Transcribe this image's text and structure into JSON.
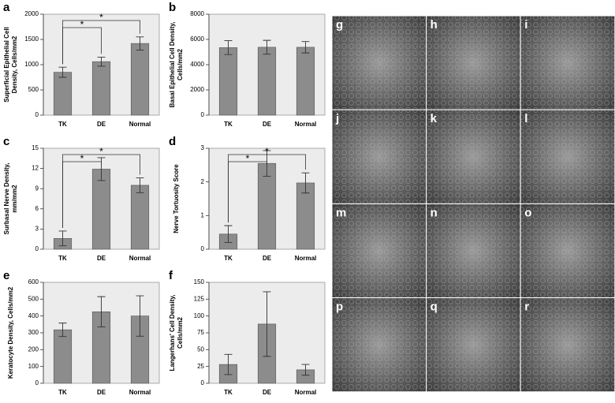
{
  "chart_data": [
    {
      "type": "bar",
      "label": "a",
      "ylabel": [
        "Superficial Epithelial Cell",
        "Density, Cells/mm2"
      ],
      "categories": [
        "TK",
        "DE",
        "Normal"
      ],
      "values": [
        850,
        1060,
        1420
      ],
      "errors": [
        100,
        90,
        130
      ],
      "ylim": [
        0,
        2000
      ],
      "yticks": [
        0,
        500,
        1000,
        1500,
        2000
      ],
      "color": "#8c8c8c",
      "brackets": [
        {
          "text": "*",
          "between": [
            "TK",
            "DE"
          ]
        },
        {
          "text": "*",
          "between": [
            "TK",
            "Normal"
          ]
        }
      ]
    },
    {
      "type": "bar",
      "label": "b",
      "ylabel": [
        "Basal Epithelial Cell Density,",
        "Cells/mm2"
      ],
      "categories": [
        "TK",
        "DE",
        "Normal"
      ],
      "values": [
        5350,
        5380,
        5380
      ],
      "errors": [
        550,
        550,
        450
      ],
      "ylim": [
        0,
        8000
      ],
      "yticks": [
        0,
        2000,
        4000,
        6000,
        8000
      ],
      "color": "#8c8c8c",
      "brackets": []
    },
    {
      "type": "bar",
      "label": "c",
      "ylabel": [
        "Surbasal Nerve Density,",
        "mm/mm2"
      ],
      "categories": [
        "TK",
        "DE",
        "Normal"
      ],
      "values": [
        1.6,
        11.9,
        9.5
      ],
      "errors": [
        1.1,
        1.7,
        1.1
      ],
      "ylim": [
        0,
        15
      ],
      "yticks": [
        0,
        3,
        6,
        9,
        12,
        15
      ],
      "color": "#8c8c8c",
      "brackets": [
        {
          "text": "*",
          "between": [
            "TK",
            "DE"
          ]
        },
        {
          "text": "*",
          "between": [
            "TK",
            "Normal"
          ]
        }
      ]
    },
    {
      "type": "bar",
      "label": "d",
      "ylabel": [
        "Nerve Tortuosity Score"
      ],
      "categories": [
        "TK",
        "DE",
        "Normal"
      ],
      "values": [
        0.45,
        2.55,
        1.97
      ],
      "errors": [
        0.25,
        0.38,
        0.3
      ],
      "ylim": [
        0,
        3
      ],
      "yticks": [
        0,
        1,
        2,
        3
      ],
      "color": "#8c8c8c",
      "brackets": [
        {
          "text": "*",
          "between": [
            "TK",
            "DE"
          ]
        },
        {
          "text": "*",
          "between": [
            "TK",
            "Normal"
          ]
        }
      ]
    },
    {
      "type": "bar",
      "label": "e",
      "ylabel": [
        "Keratocyte Density, Cells/mm2"
      ],
      "categories": [
        "TK",
        "DE",
        "Normal"
      ],
      "values": [
        318,
        425,
        400
      ],
      "errors": [
        40,
        90,
        120
      ],
      "ylim": [
        0,
        600
      ],
      "yticks": [
        0,
        100,
        200,
        300,
        400,
        500,
        600
      ],
      "color": "#8c8c8c",
      "brackets": []
    },
    {
      "type": "bar",
      "label": "f",
      "ylabel": [
        "Langerhans' Cell Density,",
        "Cells/mm2"
      ],
      "categories": [
        "TK",
        "DE",
        "Normal"
      ],
      "values": [
        28,
        88,
        20
      ],
      "errors": [
        15,
        48,
        8
      ],
      "ylim": [
        0,
        150
      ],
      "yticks": [
        0,
        25,
        50,
        75,
        100,
        125,
        150
      ],
      "color": "#8c8c8c",
      "brackets": []
    }
  ],
  "micrographs": {
    "labels": [
      "g",
      "h",
      "i",
      "j",
      "k",
      "l",
      "m",
      "n",
      "o",
      "p",
      "q",
      "r"
    ]
  }
}
